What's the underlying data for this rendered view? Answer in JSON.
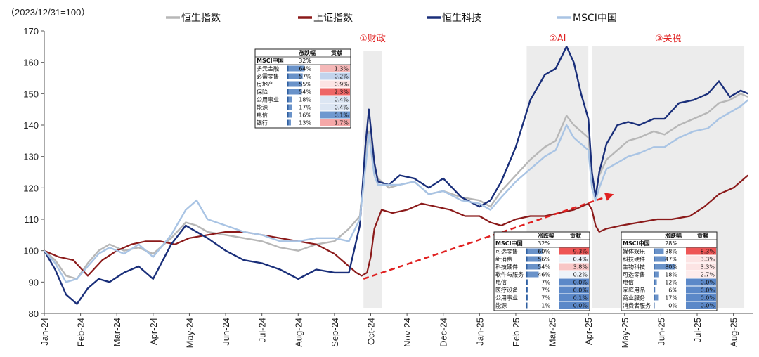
{
  "chart_data": {
    "type": "line",
    "unit_label": "（2023/12/31=100）",
    "ylim": [
      80,
      170
    ],
    "yticks": [
      "80",
      "90",
      "100",
      "110",
      "120",
      "130",
      "140",
      "150",
      "160",
      "170"
    ],
    "x_tick_labels": [
      "Jan-24",
      "Feb-24",
      "Mar-24",
      "Apr-24",
      "May-24",
      "Jun-24",
      "Jul-24",
      "Aug-24",
      "Sep-24",
      "Oct-24",
      "Nov-24",
      "Dec-24",
      "Jan-25",
      "Feb-25",
      "Mar-25",
      "Apr-25",
      "May-25",
      "Jun-25",
      "Jul-25",
      "Aug-25"
    ],
    "grid": false,
    "legend": "top",
    "series": [
      {
        "name": "恒生指数",
        "color": "#b7b7b7",
        "x": [
          0,
          0.3,
          0.6,
          0.9,
          1.2,
          1.5,
          1.8,
          2.2,
          2.6,
          3.0,
          3.5,
          3.9,
          4.2,
          4.5,
          5.0,
          5.5,
          6.0,
          6.5,
          7.0,
          7.5,
          8.0,
          8.4,
          8.7,
          8.85,
          8.95,
          9.1,
          9.2,
          9.5,
          9.8,
          10.2,
          10.6,
          11.0,
          11.5,
          12.0,
          12.3,
          12.6,
          13.0,
          13.4,
          13.8,
          14.1,
          14.4,
          14.6,
          14.8,
          15.0,
          15.1,
          15.2,
          15.3,
          15.5,
          15.8,
          16.1,
          16.4,
          16.8,
          17.1,
          17.5,
          17.9,
          18.3,
          18.6,
          18.9,
          19.2,
          19.4
        ],
        "y": [
          100,
          97,
          92,
          91,
          96,
          100,
          102,
          100,
          101,
          99,
          104,
          109,
          108,
          106,
          105,
          104,
          103,
          101,
          100,
          102,
          103,
          107,
          111,
          128,
          138,
          126,
          123,
          120,
          121,
          122,
          118,
          119,
          117,
          116,
          114,
          119,
          124,
          129,
          133,
          135,
          143,
          140,
          138,
          136,
          124,
          118,
          124,
          129,
          132,
          135,
          136,
          138,
          137,
          140,
          142,
          144,
          147,
          148,
          150,
          149
        ]
      },
      {
        "name": "上证指数",
        "color": "#8b1a1a",
        "x": [
          0,
          0.4,
          0.8,
          1.2,
          1.6,
          2.0,
          2.4,
          2.8,
          3.2,
          3.6,
          4.0,
          4.5,
          5.0,
          5.5,
          6.0,
          6.5,
          7.0,
          7.5,
          8.0,
          8.3,
          8.6,
          8.75,
          8.9,
          9.0,
          9.1,
          9.3,
          9.6,
          10.0,
          10.4,
          10.8,
          11.2,
          11.6,
          12.0,
          12.3,
          12.6,
          13.0,
          13.4,
          13.8,
          14.2,
          14.6,
          15.0,
          15.1,
          15.2,
          15.3,
          15.5,
          15.9,
          16.4,
          16.9,
          17.3,
          17.8,
          18.2,
          18.6,
          19.0,
          19.4
        ],
        "y": [
          100,
          98,
          97,
          92,
          97,
          100,
          102,
          103,
          103,
          102,
          104,
          105,
          106,
          106,
          105,
          104,
          103,
          102,
          99,
          96,
          93,
          92,
          93,
          98,
          107,
          113,
          112,
          113,
          115,
          114,
          113,
          111,
          111,
          109,
          108,
          110,
          111,
          111,
          112,
          113,
          115,
          113,
          108,
          106,
          107,
          108,
          109,
          110,
          110,
          111,
          114,
          118,
          120,
          124
        ]
      },
      {
        "name": "恒生科技",
        "color": "#1a2f7a",
        "x": [
          0,
          0.3,
          0.6,
          0.9,
          1.2,
          1.5,
          1.8,
          2.2,
          2.6,
          3.0,
          3.5,
          3.9,
          4.2,
          4.5,
          5.0,
          5.5,
          6.0,
          6.5,
          7.0,
          7.5,
          8.0,
          8.4,
          8.7,
          8.85,
          8.95,
          9.1,
          9.2,
          9.5,
          9.8,
          10.2,
          10.6,
          11.0,
          11.5,
          12.0,
          12.3,
          12.6,
          13.0,
          13.4,
          13.8,
          14.1,
          14.4,
          14.6,
          14.8,
          15.0,
          15.1,
          15.2,
          15.3,
          15.5,
          15.8,
          16.1,
          16.4,
          16.8,
          17.1,
          17.5,
          17.9,
          18.3,
          18.6,
          18.9,
          19.2,
          19.4
        ],
        "y": [
          100,
          94,
          86,
          83,
          88,
          91,
          90,
          93,
          95,
          91,
          102,
          108,
          106,
          104,
          100,
          97,
          96,
          94,
          91,
          94,
          93,
          93,
          108,
          133,
          145,
          128,
          122,
          121,
          124,
          123,
          120,
          123,
          117,
          114,
          116,
          122,
          133,
          148,
          156,
          158,
          165,
          160,
          150,
          142,
          125,
          117,
          125,
          134,
          140,
          141,
          140,
          142,
          142,
          147,
          148,
          150,
          154,
          149,
          151,
          150
        ]
      },
      {
        "name": "MSCI中国",
        "color": "#a9c4e4",
        "x": [
          0,
          0.3,
          0.6,
          0.9,
          1.2,
          1.5,
          1.8,
          2.2,
          2.6,
          3.0,
          3.5,
          3.9,
          4.2,
          4.5,
          5.0,
          5.5,
          6.0,
          6.5,
          7.0,
          7.5,
          8.0,
          8.4,
          8.7,
          8.85,
          8.95,
          9.1,
          9.2,
          9.5,
          9.8,
          10.2,
          10.6,
          11.0,
          11.5,
          12.0,
          12.3,
          12.6,
          13.0,
          13.4,
          13.8,
          14.1,
          14.4,
          14.6,
          14.8,
          15.0,
          15.1,
          15.2,
          15.3,
          15.5,
          15.8,
          16.1,
          16.4,
          16.8,
          17.1,
          17.5,
          17.9,
          18.3,
          18.6,
          18.9,
          19.2,
          19.4
        ],
        "y": [
          100,
          96,
          90,
          91,
          95,
          99,
          101,
          99,
          102,
          98,
          105,
          113,
          116,
          110,
          108,
          106,
          105,
          103,
          103,
          104,
          104,
          103,
          110,
          126,
          137,
          124,
          121,
          121,
          121,
          122,
          118,
          119,
          116,
          115,
          113,
          117,
          122,
          126,
          130,
          132,
          140,
          136,
          134,
          132,
          120,
          116,
          120,
          126,
          128,
          130,
          131,
          133,
          133,
          136,
          138,
          139,
          142,
          144,
          146,
          148
        ]
      }
    ],
    "phases": [
      {
        "label": "①财政",
        "x0": 8.8,
        "x1": 9.3
      },
      {
        "label": "②AI",
        "x0": 13.3,
        "x1": 15.0
      },
      {
        "label": "③关税",
        "x0": 15.1,
        "x1": 19.3
      }
    ],
    "trend_arrow": {
      "x0": 8.8,
      "y0": 91,
      "x1": 15.7,
      "y1": 118,
      "color": "#e02020"
    }
  },
  "legend": {
    "items": [
      {
        "name": "恒生指数",
        "color": "#b7b7b7"
      },
      {
        "name": "上证指数",
        "color": "#8b1a1a"
      },
      {
        "name": "恒生科技",
        "color": "#1a2f7a"
      },
      {
        "name": "MSCI中国",
        "color": "#a9c4e4"
      }
    ]
  },
  "tables": [
    {
      "id": "t1",
      "col_change": "涨跌幅",
      "col_contrib": "贡献",
      "total_label": "MSCI中国",
      "total_value": "32%",
      "rows": [
        {
          "name": "多元金融",
          "change": "64%",
          "chg": 0.64,
          "contrib": "1.3%",
          "heat": "#f5b8b8"
        },
        {
          "name": "必需零售",
          "change": "57%",
          "chg": 0.57,
          "contrib": "0.2%",
          "heat": "#c2d3ec"
        },
        {
          "name": "房地产",
          "change": "55%",
          "chg": 0.55,
          "contrib": "0.9%",
          "heat": "#fce4e4"
        },
        {
          "name": "保险",
          "change": "54%",
          "chg": 0.54,
          "contrib": "2.3%",
          "heat": "#ee6666"
        },
        {
          "name": "公用事业",
          "change": "18%",
          "chg": 0.18,
          "contrib": "0.4%",
          "heat": "#dce6f3"
        },
        {
          "name": "能源",
          "change": "17%",
          "chg": 0.17,
          "contrib": "0.4%",
          "heat": "#dce6f3"
        },
        {
          "name": "电信",
          "change": "16%",
          "chg": 0.16,
          "contrib": "0.1%",
          "heat": "#6f98cf"
        },
        {
          "name": "银行",
          "change": "13%",
          "chg": 0.13,
          "contrib": "1.7%",
          "heat": "#f5a8a8"
        }
      ]
    },
    {
      "id": "t2",
      "col_change": "涨跌幅",
      "col_contrib": "贡献",
      "total_label": "MSCI中国",
      "total_value": "32%",
      "rows": [
        {
          "name": "可选零售",
          "change": "60%",
          "chg": 0.6,
          "contrib": "9.3%",
          "heat": "#ee5555"
        },
        {
          "name": "新消费",
          "change": "56%",
          "chg": 0.56,
          "contrib": "0.4%",
          "heat": "#eef3f9"
        },
        {
          "name": "科技硬件",
          "change": "54%",
          "chg": 0.54,
          "contrib": "3.8%",
          "heat": "#f8c6c6"
        },
        {
          "name": "软件与服务",
          "change": "46%",
          "chg": 0.46,
          "contrib": "0.2%",
          "heat": "#eef3f9"
        },
        {
          "name": "电信",
          "change": "7%",
          "chg": 0.07,
          "contrib": "0.0%",
          "heat": "#5b88c8"
        },
        {
          "name": "医疗设备",
          "change": "7%",
          "chg": 0.07,
          "contrib": "0.0%",
          "heat": "#5b88c8"
        },
        {
          "name": "公用事业",
          "change": "7%",
          "chg": 0.07,
          "contrib": "0.1%",
          "heat": "#5b88c8"
        },
        {
          "name": "能源",
          "change": "-1%",
          "chg": -0.01,
          "contrib": "0.0%",
          "heat": "#5b88c8"
        }
      ]
    },
    {
      "id": "t3",
      "col_change": "涨跌幅",
      "col_contrib": "贡献",
      "total_label": "MSCI中国",
      "total_value": "28%",
      "rows": [
        {
          "name": "媒体娱乐",
          "change": "38%",
          "chg": 0.38,
          "contrib": "8.3%",
          "heat": "#ee5555"
        },
        {
          "name": "科技硬件",
          "change": "47%",
          "chg": 0.47,
          "contrib": "3.3%",
          "heat": "#fce4e4"
        },
        {
          "name": "生物科技",
          "change": "80%",
          "chg": 0.8,
          "contrib": "3.3%",
          "heat": "#fce4e4"
        },
        {
          "name": "可选零售",
          "change": "18%",
          "chg": 0.18,
          "contrib": "2.7%",
          "heat": "#fdecec"
        },
        {
          "name": "电信",
          "change": "12%",
          "chg": 0.12,
          "contrib": "0.0%",
          "heat": "#5b88c8"
        },
        {
          "name": "家庭用品",
          "change": "6%",
          "chg": 0.06,
          "contrib": "0.0%",
          "heat": "#5b88c8"
        },
        {
          "name": "商业服务",
          "change": "17%",
          "chg": 0.17,
          "contrib": "0.0%",
          "heat": "#5b88c8"
        },
        {
          "name": "消费者服务",
          "change": "0%",
          "chg": 0.0,
          "contrib": "0.0%",
          "heat": "#5b88c8"
        }
      ]
    }
  ]
}
